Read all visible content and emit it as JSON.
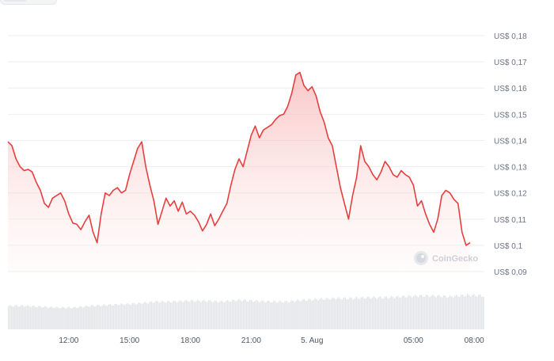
{
  "chart_data": {
    "type": "area",
    "yaxis_position": "right",
    "ylim": [
      0.09,
      0.18
    ],
    "y_ticks": [
      {
        "value": 0.18,
        "label": "US$ 0,18"
      },
      {
        "value": 0.17,
        "label": "US$ 0,17"
      },
      {
        "value": 0.16,
        "label": "US$ 0,16"
      },
      {
        "value": 0.15,
        "label": "US$ 0,15"
      },
      {
        "value": 0.14,
        "label": "US$ 0,14"
      },
      {
        "value": 0.13,
        "label": "US$ 0,13"
      },
      {
        "value": 0.12,
        "label": "US$ 0,12"
      },
      {
        "value": 0.11,
        "label": "US$ 0,11"
      },
      {
        "value": 0.1,
        "label": "US$ 0,1"
      },
      {
        "value": 0.09,
        "label": "US$ 0,09"
      }
    ],
    "xlim": [
      9.0,
      32.5
    ],
    "x_ticks": [
      {
        "hour": 12,
        "label": "12:00"
      },
      {
        "hour": 15,
        "label": "15:00"
      },
      {
        "hour": 18,
        "label": "18:00"
      },
      {
        "hour": 21,
        "label": "21:00"
      },
      {
        "hour": 24,
        "label": "5. Aug"
      },
      {
        "hour": 29,
        "label": "05:00"
      },
      {
        "hour": 32,
        "label": "08:00"
      }
    ],
    "grid": true,
    "colors": {
      "line": "#e83e3e",
      "fill_top": "#f8b4b4",
      "grid": "#eeeeee",
      "volume": "#e3e5e8"
    },
    "series": [
      {
        "name": "",
        "points": [
          [
            9.0,
            0.1395
          ],
          [
            9.2,
            0.138
          ],
          [
            9.4,
            0.133
          ],
          [
            9.6,
            0.13
          ],
          [
            9.8,
            0.1285
          ],
          [
            10.0,
            0.129
          ],
          [
            10.2,
            0.128
          ],
          [
            10.4,
            0.124
          ],
          [
            10.6,
            0.121
          ],
          [
            10.8,
            0.116
          ],
          [
            11.0,
            0.1145
          ],
          [
            11.2,
            0.118
          ],
          [
            11.4,
            0.119
          ],
          [
            11.6,
            0.12
          ],
          [
            11.8,
            0.117
          ],
          [
            12.0,
            0.112
          ],
          [
            12.2,
            0.1085
          ],
          [
            12.4,
            0.108
          ],
          [
            12.6,
            0.106
          ],
          [
            12.8,
            0.109
          ],
          [
            13.0,
            0.1115
          ],
          [
            13.2,
            0.105
          ],
          [
            13.4,
            0.101
          ],
          [
            13.6,
            0.112
          ],
          [
            13.8,
            0.12
          ],
          [
            14.0,
            0.119
          ],
          [
            14.2,
            0.121
          ],
          [
            14.4,
            0.122
          ],
          [
            14.6,
            0.12
          ],
          [
            14.8,
            0.121
          ],
          [
            15.0,
            0.127
          ],
          [
            15.2,
            0.132
          ],
          [
            15.4,
            0.137
          ],
          [
            15.6,
            0.1395
          ],
          [
            15.8,
            0.13
          ],
          [
            16.0,
            0.123
          ],
          [
            16.2,
            0.117
          ],
          [
            16.4,
            0.108
          ],
          [
            16.6,
            0.113
          ],
          [
            16.8,
            0.118
          ],
          [
            17.0,
            0.115
          ],
          [
            17.2,
            0.117
          ],
          [
            17.4,
            0.113
          ],
          [
            17.6,
            0.1165
          ],
          [
            17.8,
            0.112
          ],
          [
            18.0,
            0.113
          ],
          [
            18.2,
            0.1115
          ],
          [
            18.4,
            0.109
          ],
          [
            18.6,
            0.1055
          ],
          [
            18.8,
            0.108
          ],
          [
            19.0,
            0.112
          ],
          [
            19.2,
            0.1075
          ],
          [
            19.4,
            0.11
          ],
          [
            19.6,
            0.113
          ],
          [
            19.8,
            0.116
          ],
          [
            20.0,
            0.123
          ],
          [
            20.2,
            0.129
          ],
          [
            20.4,
            0.133
          ],
          [
            20.6,
            0.13
          ],
          [
            20.8,
            0.136
          ],
          [
            21.0,
            0.142
          ],
          [
            21.2,
            0.1455
          ],
          [
            21.4,
            0.141
          ],
          [
            21.6,
            0.144
          ],
          [
            21.8,
            0.145
          ],
          [
            22.0,
            0.146
          ],
          [
            22.2,
            0.148
          ],
          [
            22.4,
            0.1495
          ],
          [
            22.6,
            0.15
          ],
          [
            22.8,
            0.153
          ],
          [
            23.0,
            0.158
          ],
          [
            23.2,
            0.165
          ],
          [
            23.4,
            0.166
          ],
          [
            23.6,
            0.161
          ],
          [
            23.8,
            0.159
          ],
          [
            24.0,
            0.1605
          ],
          [
            24.2,
            0.157
          ],
          [
            24.4,
            0.151
          ],
          [
            24.6,
            0.147
          ],
          [
            24.8,
            0.141
          ],
          [
            25.0,
            0.138
          ],
          [
            25.2,
            0.13
          ],
          [
            25.4,
            0.122
          ],
          [
            25.6,
            0.116
          ],
          [
            25.8,
            0.11
          ],
          [
            26.0,
            0.119
          ],
          [
            26.2,
            0.126
          ],
          [
            26.4,
            0.138
          ],
          [
            26.6,
            0.132
          ],
          [
            26.8,
            0.13
          ],
          [
            27.0,
            0.127
          ],
          [
            27.2,
            0.125
          ],
          [
            27.4,
            0.128
          ],
          [
            27.6,
            0.132
          ],
          [
            27.8,
            0.13
          ],
          [
            28.0,
            0.127
          ],
          [
            28.2,
            0.126
          ],
          [
            28.4,
            0.1285
          ],
          [
            28.6,
            0.127
          ],
          [
            28.8,
            0.126
          ],
          [
            29.0,
            0.123
          ],
          [
            29.2,
            0.115
          ],
          [
            29.4,
            0.117
          ],
          [
            29.6,
            0.112
          ],
          [
            29.8,
            0.108
          ],
          [
            30.0,
            0.105
          ],
          [
            30.2,
            0.11
          ],
          [
            30.4,
            0.119
          ],
          [
            30.6,
            0.121
          ],
          [
            30.8,
            0.12
          ],
          [
            31.0,
            0.1175
          ],
          [
            31.2,
            0.116
          ],
          [
            31.4,
            0.105
          ],
          [
            31.6,
            0.1
          ],
          [
            31.8,
            0.101
          ]
        ]
      }
    ],
    "volume": {
      "x_start": 9.0,
      "x_end": 32.5,
      "relative_values": [
        0.28,
        0.28,
        0.27,
        0.26,
        0.26,
        0.28,
        0.29,
        0.3,
        0.31,
        0.33,
        0.33,
        0.34,
        0.34,
        0.33,
        0.35,
        0.34,
        0.33,
        0.33,
        0.35,
        0.36,
        0.37,
        0.37,
        0.38,
        0.38,
        0.39,
        0.4,
        0.4,
        0.39,
        0.41,
        0.4
      ]
    }
  },
  "watermark": {
    "text": "CoinGecko",
    "icon": "coingecko-logo-icon"
  }
}
